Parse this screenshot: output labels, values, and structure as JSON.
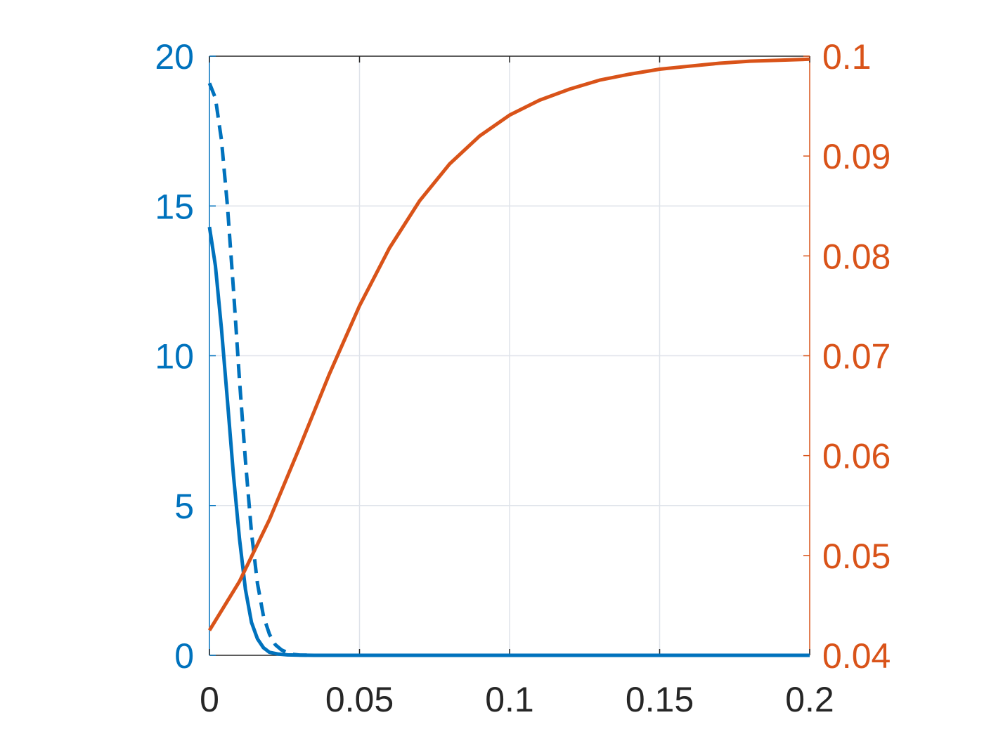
{
  "chart_data": {
    "type": "line",
    "title": "",
    "xlabel": "",
    "ylabel_left": "",
    "ylabel_right": "",
    "xlim": [
      0,
      0.2
    ],
    "ylim_left": [
      0,
      20
    ],
    "ylim_right": [
      0.04,
      0.1
    ],
    "grid": true,
    "legend": "none",
    "x_ticks": [
      0,
      0.05,
      0.1,
      0.15,
      0.2
    ],
    "x_tick_labels": [
      "0",
      "0.05",
      "0.1",
      "0.15",
      "0.2"
    ],
    "y_left_ticks": [
      0,
      5,
      10,
      15,
      20
    ],
    "y_left_tick_labels": [
      "0",
      "5",
      "10",
      "15",
      "20"
    ],
    "y_right_ticks": [
      0.04,
      0.05,
      0.06,
      0.07,
      0.08,
      0.09,
      0.1
    ],
    "y_right_tick_labels": [
      "0.04",
      "0.05",
      "0.06",
      "0.07",
      "0.08",
      "0.09",
      "0.1"
    ],
    "colors": {
      "left_axis": "#0072BD",
      "right_axis": "#D95319",
      "x_axis": "#262626",
      "grid": "#dfe3ea"
    },
    "series": [
      {
        "axis": "left",
        "style": "solid",
        "color": "#0072BD",
        "x": [
          0,
          0.002,
          0.004,
          0.006,
          0.008,
          0.01,
          0.012,
          0.014,
          0.016,
          0.018,
          0.02,
          0.023,
          0.026,
          0.03,
          0.035,
          0.05,
          0.1,
          0.15,
          0.2
        ],
        "y": [
          14.3,
          13.0,
          10.9,
          8.5,
          6.0,
          3.9,
          2.2,
          1.1,
          0.55,
          0.25,
          0.1,
          0.04,
          0.015,
          0.005,
          0,
          0,
          0,
          0,
          0
        ]
      },
      {
        "axis": "left",
        "style": "dashed",
        "color": "#0072BD",
        "x": [
          0,
          0.002,
          0.004,
          0.006,
          0.008,
          0.01,
          0.012,
          0.014,
          0.016,
          0.018,
          0.02,
          0.022,
          0.024,
          0.026,
          0.028,
          0.03,
          0.035,
          0.05,
          0.1,
          0.15,
          0.2
        ],
        "y": [
          19.1,
          18.6,
          17.2,
          15.0,
          12.2,
          9.2,
          6.5,
          4.1,
          2.4,
          1.3,
          0.7,
          0.35,
          0.18,
          0.09,
          0.03,
          0.01,
          0,
          0,
          0,
          0,
          0
        ]
      },
      {
        "axis": "right",
        "style": "solid",
        "color": "#D95319",
        "x": [
          0,
          0.01,
          0.02,
          0.03,
          0.04,
          0.05,
          0.06,
          0.07,
          0.08,
          0.09,
          0.1,
          0.11,
          0.12,
          0.13,
          0.14,
          0.15,
          0.16,
          0.17,
          0.18,
          0.19,
          0.2
        ],
        "y": [
          0.0425,
          0.0474,
          0.0536,
          0.0608,
          0.0682,
          0.075,
          0.0808,
          0.0855,
          0.0892,
          0.092,
          0.0941,
          0.0956,
          0.0967,
          0.0976,
          0.0982,
          0.0987,
          0.099,
          0.0993,
          0.0995,
          0.0996,
          0.0997
        ]
      }
    ]
  }
}
